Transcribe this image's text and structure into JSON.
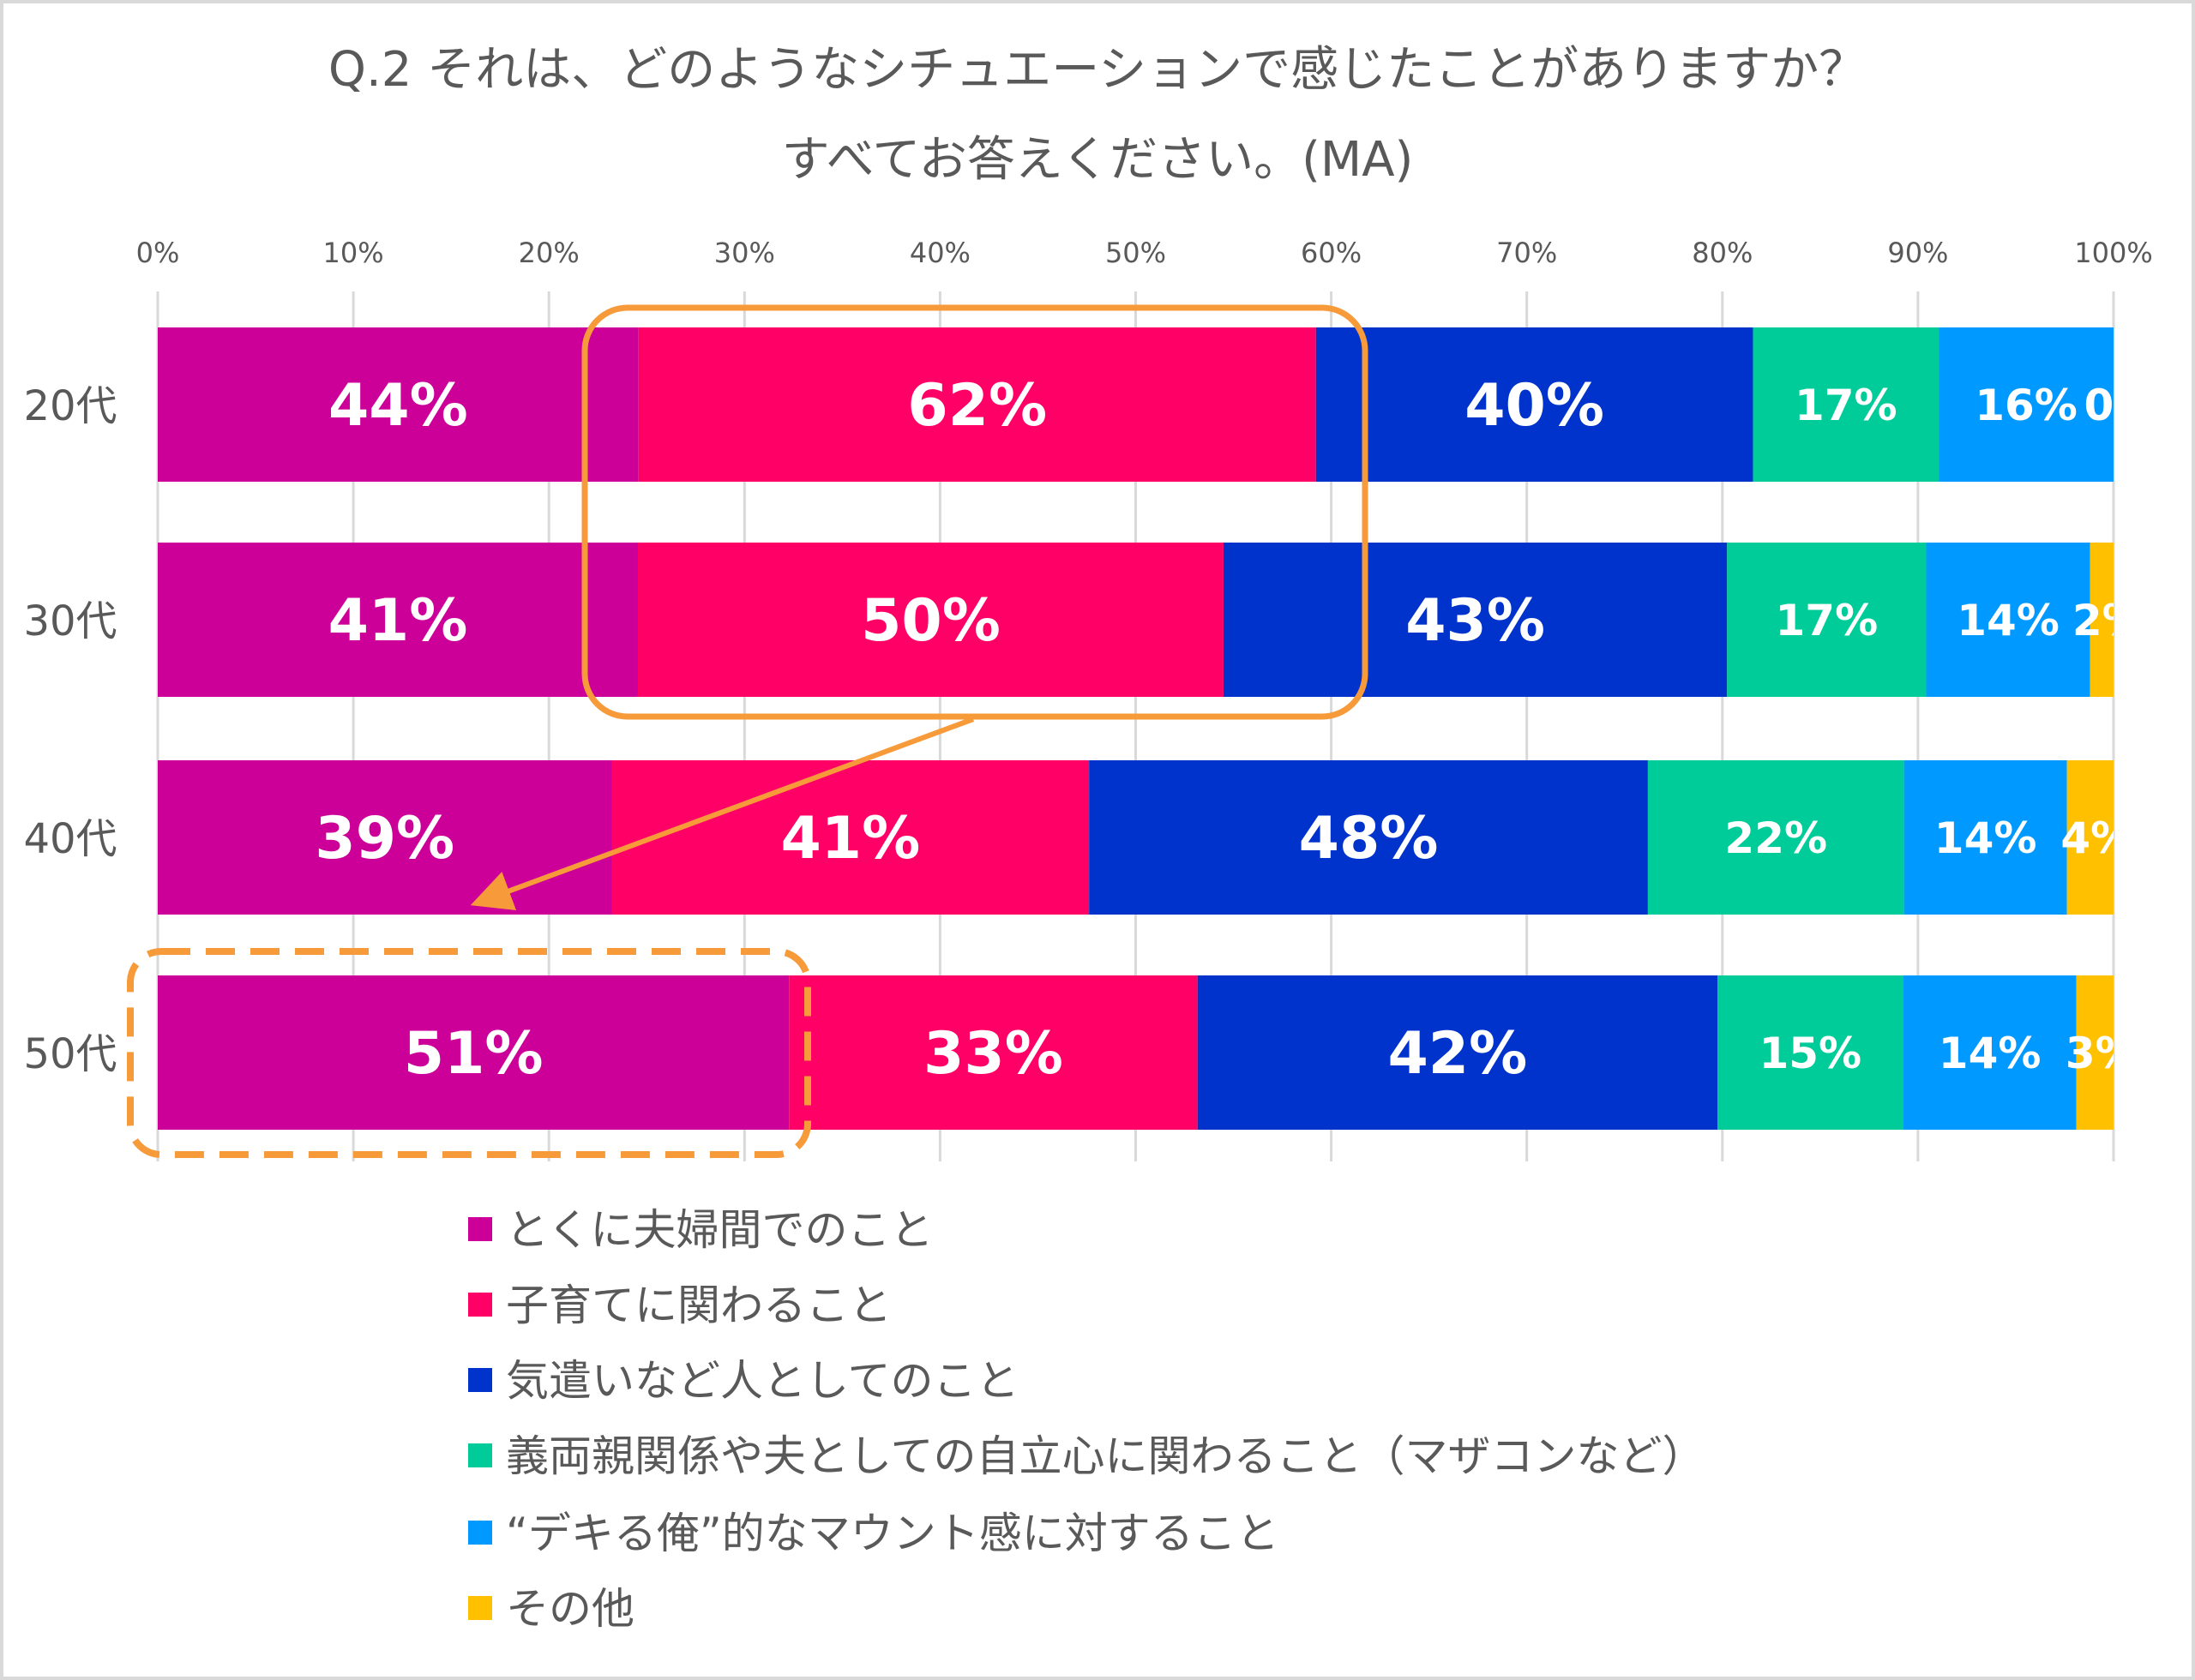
{
  "chart_data": {
    "type": "bar",
    "orientation": "horizontal",
    "stacked": "percent",
    "title": "Q.2 それは、どのようなシチュエーションで感じたことがありますか？",
    "subtitle": "すべてお答えください。(MA)",
    "categories": [
      "20代",
      "30代",
      "40代",
      "50代"
    ],
    "series": [
      {
        "name": "とくに夫婦間でのこと",
        "color": "#CC0099",
        "values": [
          44,
          41,
          39,
          51
        ]
      },
      {
        "name": "子育てに関わること",
        "color": "#FF0066",
        "values": [
          62,
          50,
          41,
          33
        ]
      },
      {
        "name": "気遣いなど人としてのこと",
        "color": "#0033CC",
        "values": [
          40,
          43,
          48,
          42
        ]
      },
      {
        "name": "義両親関係や夫としての自立心に関わること（マザコンなど）",
        "color": "#00CC99",
        "values": [
          17,
          17,
          22,
          15
        ]
      },
      {
        "name": "“デキる俺”的なマウント感に対すること",
        "color": "#0099FF",
        "values": [
          16,
          14,
          14,
          14
        ]
      },
      {
        "name": "その他",
        "color": "#FFC000",
        "values": [
          0,
          2,
          4,
          3
        ]
      }
    ],
    "xticks": [
      "0%",
      "10%",
      "20%",
      "30%",
      "40%",
      "50%",
      "60%",
      "70%",
      "80%",
      "90%",
      "100%"
    ],
    "xlim": [
      0,
      100
    ],
    "grid": true,
    "legend_position": "bottom",
    "annotations": [
      {
        "type": "rounded-box",
        "target": "子育てに関わること 20代-30代"
      },
      {
        "type": "dashed-box",
        "target": "とくに夫婦間でのこと 50代"
      },
      {
        "type": "arrow",
        "from": "子育てに関わること 30代",
        "to": "とくに夫婦間でのこと 50代"
      }
    ],
    "highlight_color": "#F79A3A"
  }
}
